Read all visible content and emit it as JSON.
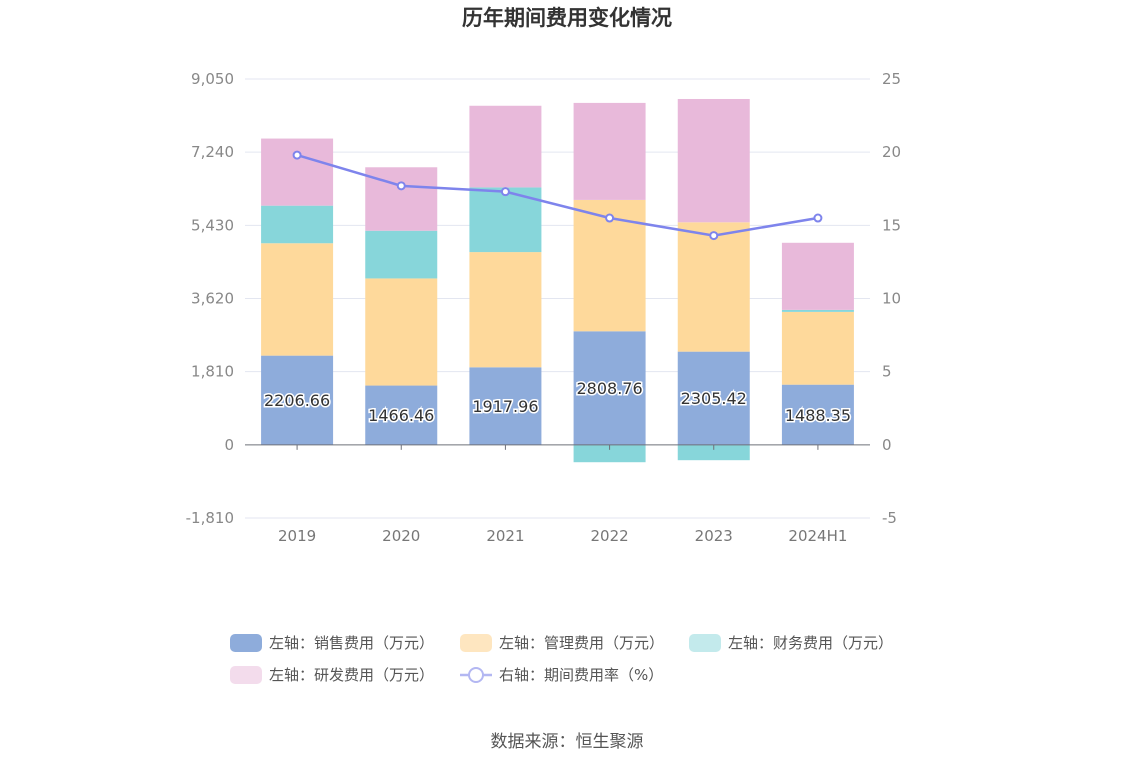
{
  "chart_data": {
    "type": "bar",
    "title": "历年期间费用变化情况",
    "categories": [
      "2019",
      "2020",
      "2021",
      "2022",
      "2023",
      "2024H1"
    ],
    "stacked": true,
    "y_left": {
      "ticks": [
        "9,050",
        "7,240",
        "5,430",
        "3,620",
        "1,810",
        "0",
        "-1,810"
      ],
      "min": -1810,
      "max": 9050
    },
    "y_right": {
      "ticks": [
        "25",
        "20",
        "15",
        "10",
        "5",
        "0",
        "-5"
      ],
      "min": -5,
      "max": 25
    },
    "series": [
      {
        "name": "左轴：销售费用（万元）",
        "axis": "left",
        "color": "#8eacdb",
        "values": [
          2206.66,
          1466.46,
          1917.96,
          2808.76,
          2305.42,
          1488.35
        ],
        "labels": [
          "2206.66",
          "1466.46",
          "1917.96",
          "2808.76",
          "2305.42",
          "1488.35"
        ]
      },
      {
        "name": "左轴：管理费用（万元）",
        "axis": "left",
        "color": "#fed99b",
        "legend_color": "#fee6c0",
        "values": [
          2780,
          2650,
          2850,
          3250,
          3200,
          1800
        ]
      },
      {
        "name": "左轴：财务费用（万元）",
        "axis": "left",
        "color": "#87d6da",
        "legend_color": "#c3eaec",
        "values": [
          930,
          1180,
          1600,
          -430,
          -380,
          50
        ]
      },
      {
        "name": "左轴：研发费用（万元）",
        "axis": "left",
        "color": "#e8b9da",
        "legend_color": "#f3dcec",
        "values": [
          1660,
          1570,
          2020,
          2400,
          3050,
          1660
        ]
      },
      {
        "type": "line",
        "name": "右轴：期间费用率（%）",
        "axis": "right",
        "color": "#7e84ec",
        "values": [
          19.8,
          17.7,
          17.3,
          15.5,
          14.3,
          15.5
        ]
      }
    ],
    "grid": true,
    "legend_position": "bottom"
  },
  "footer": {
    "source": "数据来源：恒生聚源"
  }
}
